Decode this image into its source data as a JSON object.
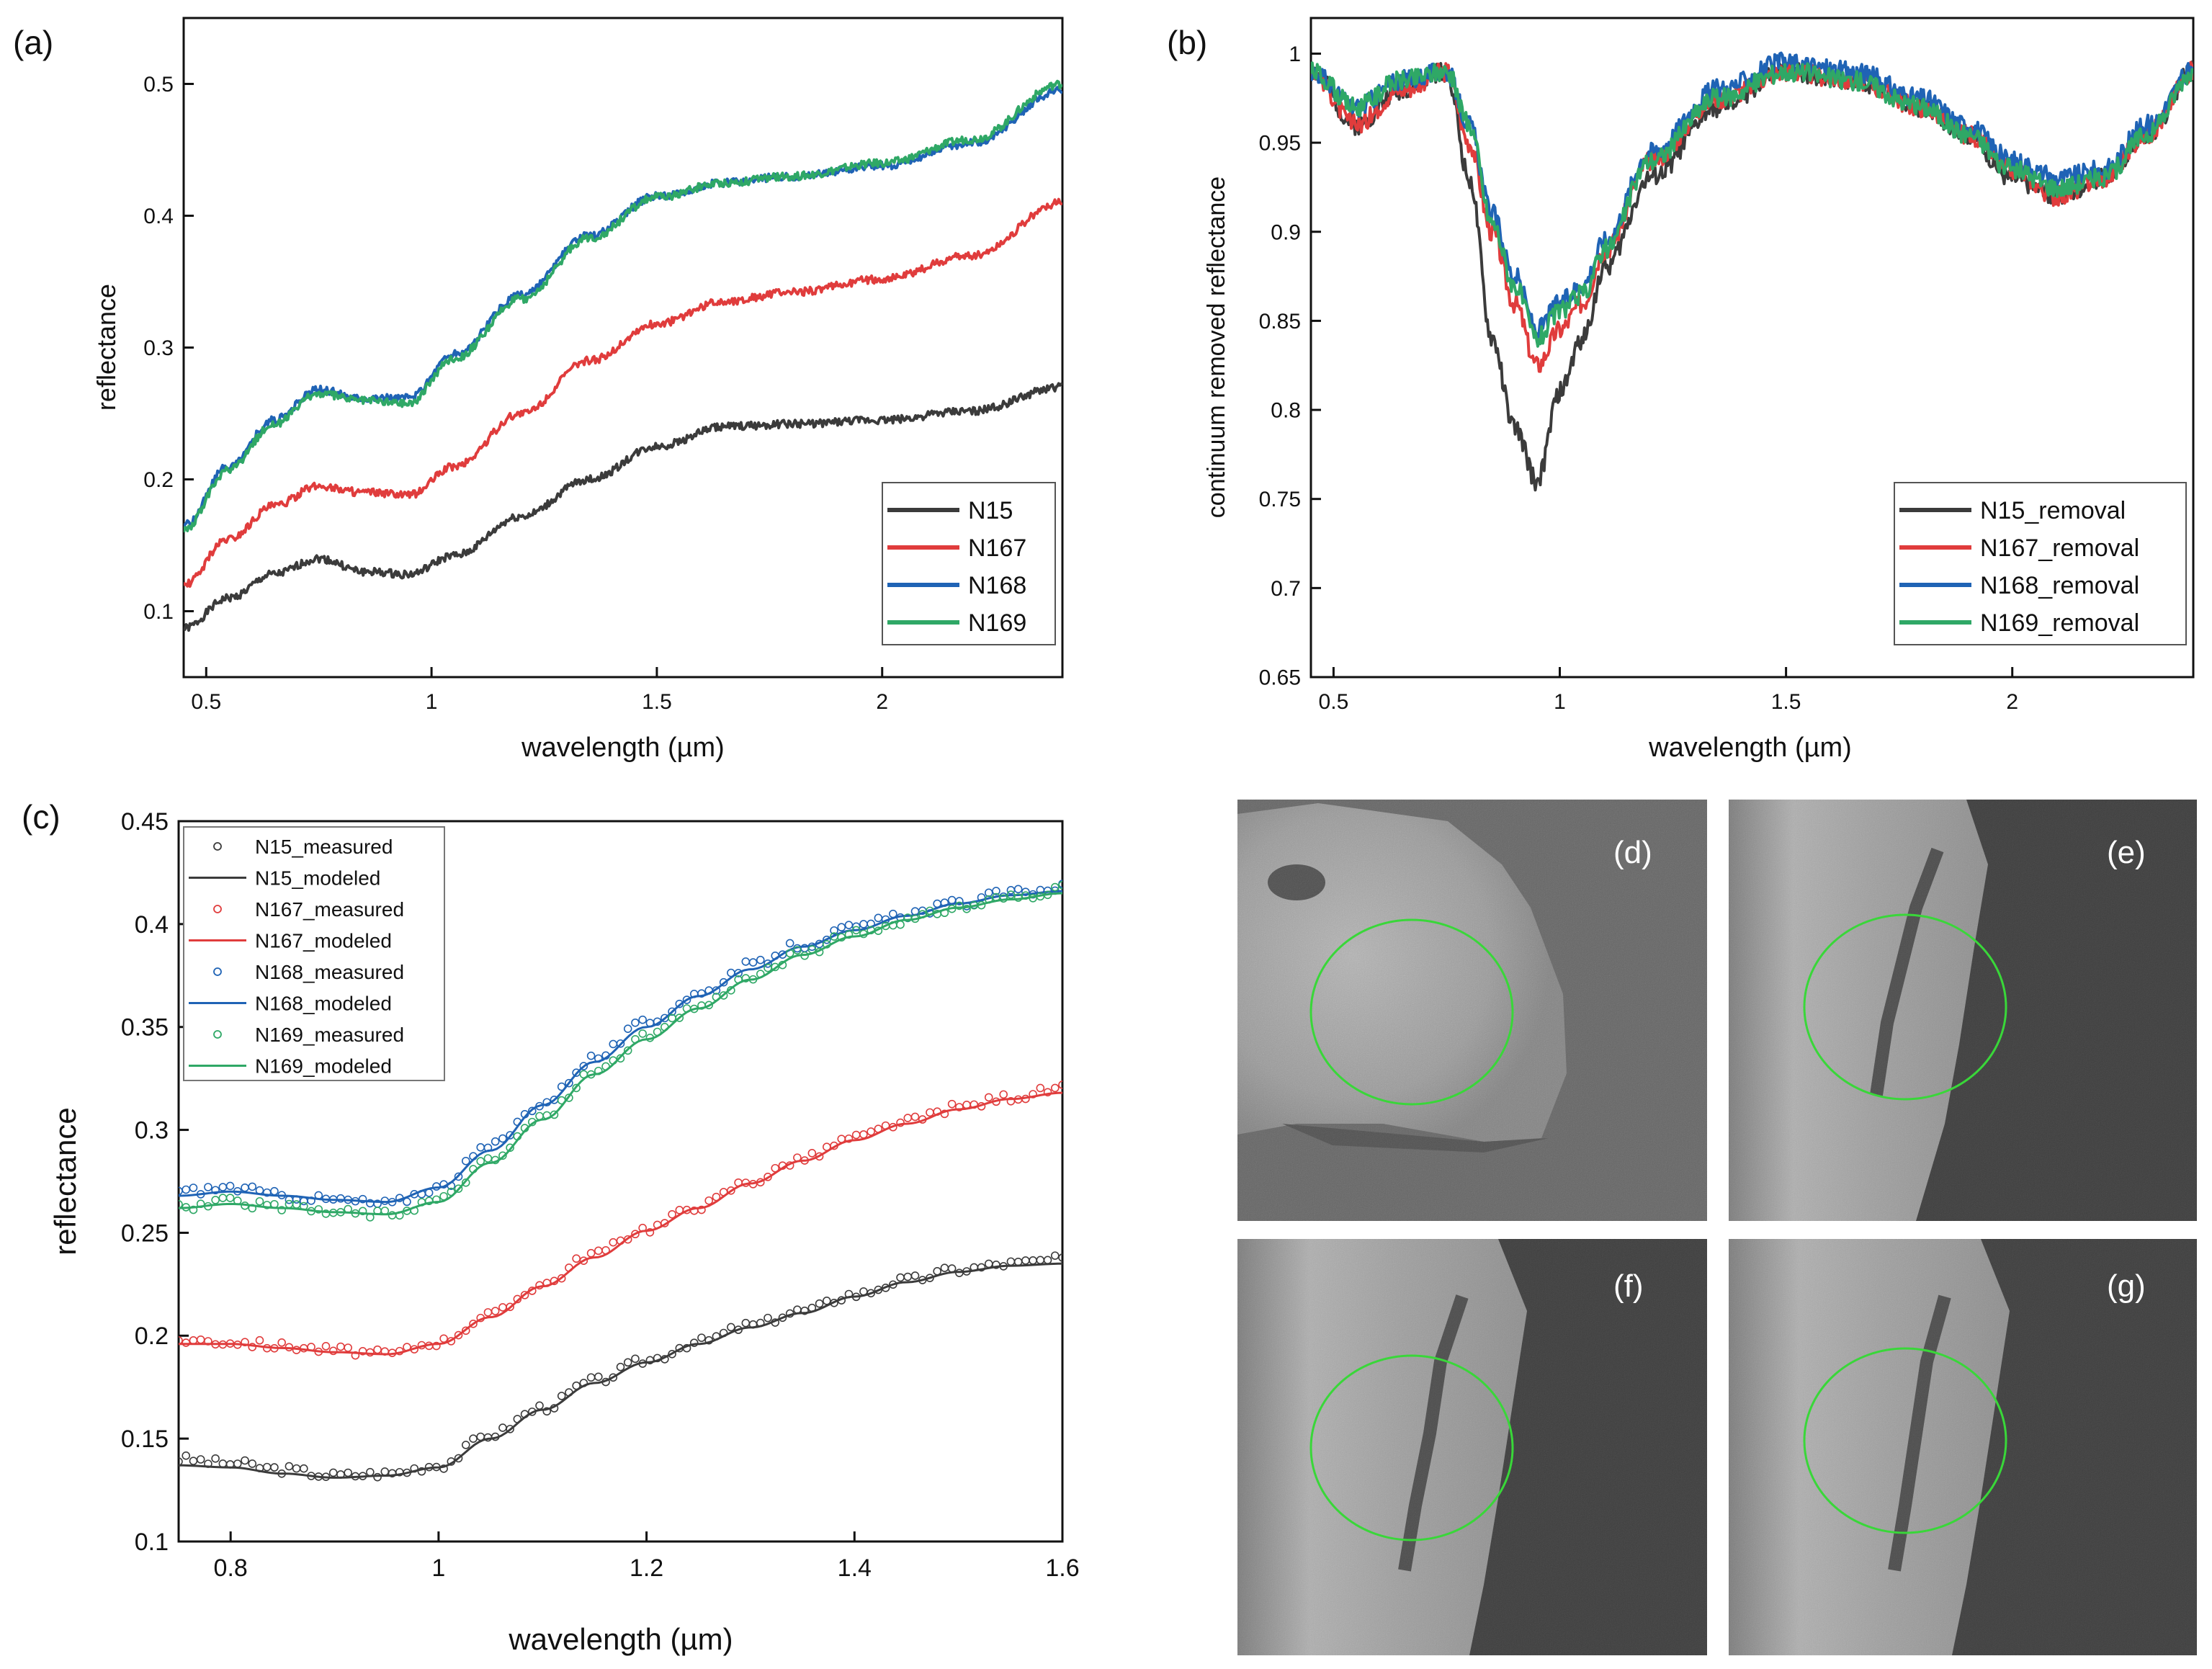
{
  "figure": {
    "panels": [
      "(a)",
      "(b)",
      "(c)",
      "(d)",
      "(e)",
      "(f)",
      "(g)"
    ]
  },
  "colors": {
    "N15": "#3b3b3b",
    "N167": "#e03c3c",
    "N168": "#1f63b5",
    "N169": "#2fa866",
    "circle": "#39d739"
  },
  "chart_data": [
    {
      "id": "a",
      "panel_label": "(a)",
      "type": "line",
      "xlabel": "wavelength (µm)",
      "ylabel": "reflectance",
      "xlim": [
        0.45,
        2.4
      ],
      "ylim": [
        0.05,
        0.55
      ],
      "xticks": [
        0.5,
        1,
        1.5,
        2
      ],
      "xtick_labels": [
        "0.5",
        "1",
        "1.5",
        "2"
      ],
      "yticks": [
        0.1,
        0.2,
        0.3,
        0.4,
        0.5
      ],
      "ytick_labels": [
        "0.1",
        "0.2",
        "0.3",
        "0.4",
        "0.5"
      ],
      "legend_position": "bottom-right",
      "x": [
        0.45,
        0.55,
        0.65,
        0.75,
        0.85,
        0.95,
        1.05,
        1.2,
        1.35,
        1.5,
        1.65,
        1.8,
        2.0,
        2.2,
        2.4
      ],
      "series": [
        {
          "name": "N15",
          "color_key": "N15",
          "values": [
            0.087,
            0.11,
            0.128,
            0.14,
            0.13,
            0.128,
            0.142,
            0.172,
            0.2,
            0.225,
            0.24,
            0.242,
            0.245,
            0.252,
            0.27
          ]
        },
        {
          "name": "N167",
          "color_key": "N167",
          "values": [
            0.12,
            0.155,
            0.18,
            0.195,
            0.19,
            0.188,
            0.21,
            0.25,
            0.29,
            0.318,
            0.335,
            0.342,
            0.352,
            0.37,
            0.41
          ]
        },
        {
          "name": "N168",
          "color_key": "N168",
          "values": [
            0.165,
            0.21,
            0.245,
            0.268,
            0.262,
            0.262,
            0.295,
            0.34,
            0.385,
            0.415,
            0.425,
            0.43,
            0.438,
            0.455,
            0.495
          ]
        },
        {
          "name": "N169",
          "color_key": "N169",
          "values": [
            0.162,
            0.207,
            0.242,
            0.265,
            0.26,
            0.258,
            0.292,
            0.337,
            0.383,
            0.414,
            0.425,
            0.43,
            0.44,
            0.458,
            0.5
          ]
        }
      ]
    },
    {
      "id": "b",
      "panel_label": "(b)",
      "type": "line",
      "xlabel": "wavelength (µm)",
      "ylabel": "continuum removed reflectance",
      "xlim": [
        0.45,
        2.4
      ],
      "ylim": [
        0.65,
        1.02
      ],
      "xticks": [
        0.5,
        1,
        1.5,
        2
      ],
      "xtick_labels": [
        "0.5",
        "1",
        "1.5",
        "2"
      ],
      "yticks": [
        0.65,
        0.7,
        0.75,
        0.8,
        0.85,
        0.9,
        0.95,
        1
      ],
      "ytick_labels": [
        "0.65",
        "0.7",
        "0.75",
        "0.8",
        "0.85",
        "0.9",
        "0.95",
        "1"
      ],
      "legend_position": "bottom-right",
      "x": [
        0.45,
        0.55,
        0.65,
        0.75,
        0.8,
        0.85,
        0.9,
        0.95,
        1.0,
        1.05,
        1.1,
        1.2,
        1.35,
        1.5,
        1.65,
        1.8,
        1.9,
        2.0,
        2.1,
        2.2,
        2.3,
        2.4
      ],
      "series": [
        {
          "name": "N15_removal",
          "color_key": "N15",
          "values": [
            0.99,
            0.96,
            0.98,
            0.99,
            0.93,
            0.84,
            0.79,
            0.76,
            0.81,
            0.84,
            0.88,
            0.93,
            0.97,
            0.99,
            0.985,
            0.97,
            0.955,
            0.93,
            0.92,
            0.93,
            0.955,
            0.99
          ]
        },
        {
          "name": "N167_removal",
          "color_key": "N167",
          "values": [
            0.99,
            0.96,
            0.98,
            0.99,
            0.95,
            0.9,
            0.86,
            0.825,
            0.845,
            0.86,
            0.89,
            0.94,
            0.975,
            0.99,
            0.985,
            0.97,
            0.955,
            0.935,
            0.92,
            0.93,
            0.955,
            0.99
          ]
        },
        {
          "name": "N168_removal",
          "color_key": "N168",
          "values": [
            0.99,
            0.97,
            0.985,
            0.99,
            0.96,
            0.91,
            0.875,
            0.845,
            0.86,
            0.87,
            0.895,
            0.945,
            0.98,
            0.995,
            0.99,
            0.975,
            0.96,
            0.94,
            0.93,
            0.935,
            0.96,
            0.99
          ]
        },
        {
          "name": "N169_removal",
          "color_key": "N169",
          "values": [
            0.99,
            0.97,
            0.985,
            0.99,
            0.96,
            0.905,
            0.87,
            0.84,
            0.855,
            0.865,
            0.89,
            0.94,
            0.975,
            0.99,
            0.985,
            0.97,
            0.955,
            0.935,
            0.925,
            0.93,
            0.955,
            0.99
          ]
        }
      ]
    },
    {
      "id": "c",
      "panel_label": "(c)",
      "type": "line",
      "xlabel": "wavelength (µm)",
      "ylabel": "reflectance",
      "xlim": [
        0.75,
        1.6
      ],
      "ylim": [
        0.1,
        0.45
      ],
      "xticks": [
        0.8,
        1.0,
        1.2,
        1.4,
        1.6
      ],
      "xtick_labels": [
        "0.8",
        "1",
        "1.2",
        "1.4",
        "1.6"
      ],
      "yticks": [
        0.1,
        0.15,
        0.2,
        0.25,
        0.3,
        0.35,
        0.4,
        0.45
      ],
      "ytick_labels": [
        "0.1",
        "0.15",
        "0.2",
        "0.25",
        "0.3",
        "0.35",
        "0.4",
        "0.45"
      ],
      "legend_position": "top-left",
      "x": [
        0.75,
        0.8,
        0.85,
        0.9,
        0.95,
        1.0,
        1.05,
        1.1,
        1.15,
        1.2,
        1.25,
        1.3,
        1.35,
        1.4,
        1.45,
        1.5,
        1.55,
        1.6
      ],
      "series": [
        {
          "name": "N15_measured",
          "color_key": "N15",
          "style": "markers",
          "values": [
            0.14,
            0.138,
            0.135,
            0.132,
            0.133,
            0.137,
            0.152,
            0.165,
            0.178,
            0.188,
            0.197,
            0.205,
            0.212,
            0.22,
            0.227,
            0.232,
            0.235,
            0.237
          ]
        },
        {
          "name": "N15_modeled",
          "color_key": "N15",
          "style": "line",
          "values": [
            0.137,
            0.136,
            0.133,
            0.131,
            0.132,
            0.136,
            0.15,
            0.164,
            0.177,
            0.187,
            0.196,
            0.204,
            0.211,
            0.219,
            0.226,
            0.231,
            0.234,
            0.235
          ]
        },
        {
          "name": "N167_measured",
          "color_key": "N167",
          "style": "markers",
          "values": [
            0.198,
            0.197,
            0.195,
            0.193,
            0.191,
            0.197,
            0.21,
            0.225,
            0.24,
            0.252,
            0.263,
            0.275,
            0.286,
            0.296,
            0.304,
            0.311,
            0.316,
            0.32
          ]
        },
        {
          "name": "N167_modeled",
          "color_key": "N167",
          "style": "line",
          "values": [
            0.196,
            0.196,
            0.194,
            0.192,
            0.191,
            0.196,
            0.209,
            0.224,
            0.238,
            0.251,
            0.262,
            0.274,
            0.285,
            0.295,
            0.303,
            0.31,
            0.315,
            0.318
          ]
        },
        {
          "name": "N168_measured",
          "color_key": "N168",
          "style": "markers",
          "values": [
            0.27,
            0.272,
            0.268,
            0.266,
            0.264,
            0.272,
            0.292,
            0.313,
            0.335,
            0.352,
            0.366,
            0.38,
            0.39,
            0.398,
            0.405,
            0.41,
            0.415,
            0.418
          ]
        },
        {
          "name": "N168_modeled",
          "color_key": "N168",
          "style": "line",
          "values": [
            0.268,
            0.27,
            0.268,
            0.266,
            0.265,
            0.272,
            0.29,
            0.312,
            0.333,
            0.35,
            0.365,
            0.378,
            0.389,
            0.397,
            0.404,
            0.41,
            0.414,
            0.416
          ]
        },
        {
          "name": "N169_measured",
          "color_key": "N169",
          "style": "markers",
          "values": [
            0.262,
            0.265,
            0.262,
            0.26,
            0.259,
            0.266,
            0.285,
            0.306,
            0.328,
            0.345,
            0.36,
            0.374,
            0.386,
            0.395,
            0.402,
            0.408,
            0.413,
            0.417
          ]
        },
        {
          "name": "N169_modeled",
          "color_key": "N169",
          "style": "line",
          "values": [
            0.262,
            0.264,
            0.262,
            0.26,
            0.259,
            0.265,
            0.284,
            0.305,
            0.327,
            0.344,
            0.359,
            0.373,
            0.385,
            0.394,
            0.402,
            0.408,
            0.412,
            0.415
          ]
        }
      ]
    }
  ]
}
